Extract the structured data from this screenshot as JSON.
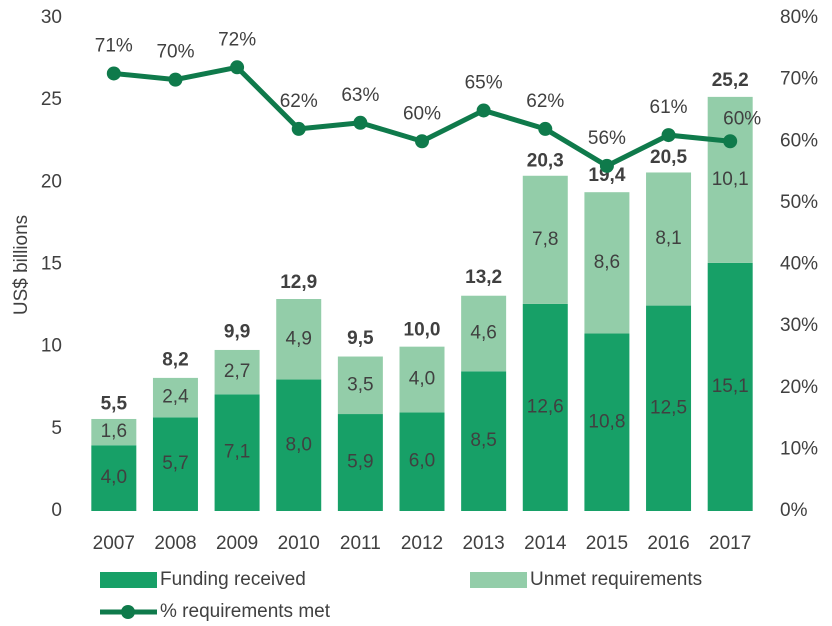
{
  "chart_data": {
    "type": "bar_line",
    "categories": [
      "2007",
      "2008",
      "2009",
      "2010",
      "2011",
      "2012",
      "2013",
      "2014",
      "2015",
      "2016",
      "2017"
    ],
    "series": [
      {
        "name": "Funding received",
        "type": "bar",
        "color": "#17a067",
        "values": [
          4.0,
          5.7,
          7.1,
          8.0,
          5.9,
          6.0,
          8.5,
          12.6,
          10.8,
          12.5,
          15.1
        ],
        "value_labels": [
          "4,0",
          "5,7",
          "7,1",
          "8,0",
          "5,9",
          "6,0",
          "8,5",
          "12,6",
          "10,8",
          "12,5",
          "15,1"
        ]
      },
      {
        "name": "Unmet requirements",
        "type": "bar",
        "color": "#93cda9",
        "values": [
          1.6,
          2.4,
          2.7,
          4.9,
          3.5,
          4.0,
          4.6,
          7.8,
          8.6,
          8.1,
          10.1
        ],
        "value_labels": [
          "1,6",
          "2,4",
          "2,7",
          "4,9",
          "3,5",
          "4,0",
          "4,6",
          "7,8",
          "8,6",
          "8,1",
          "10,1"
        ]
      },
      {
        "name": "% requirements met",
        "type": "line",
        "axis": "y2",
        "color": "#0f7a4b",
        "values": [
          71,
          70,
          72,
          62,
          63,
          60,
          65,
          62,
          56,
          61,
          60
        ],
        "value_labels": [
          "71%",
          "70%",
          "72%",
          "62%",
          "63%",
          "60%",
          "65%",
          "62%",
          "56%",
          "61%",
          "60%"
        ]
      }
    ],
    "totals": [
      5.5,
      8.2,
      9.9,
      12.9,
      9.5,
      10.0,
      13.2,
      20.3,
      19.4,
      20.5,
      25.2
    ],
    "total_labels": [
      "5,5",
      "8,2",
      "9,9",
      "12,9",
      "9,5",
      "10,0",
      "13,2",
      "20,3",
      "19,4",
      "20,5",
      "25,2"
    ],
    "y_label": "US$ billions",
    "ylim": [
      0,
      30
    ],
    "yticks": [
      0,
      5,
      10,
      15,
      20,
      25,
      30
    ],
    "y2lim": [
      0,
      80
    ],
    "y2ticks": [
      {
        "value": 0,
        "label": "0%"
      },
      {
        "value": 10,
        "label": "10%"
      },
      {
        "value": 20,
        "label": "20%"
      },
      {
        "value": 30,
        "label": "30%"
      },
      {
        "value": 40,
        "label": "40%"
      },
      {
        "value": 50,
        "label": "50%"
      },
      {
        "value": 60,
        "label": "60%"
      },
      {
        "value": 70,
        "label": "70%"
      },
      {
        "value": 80,
        "label": "80%"
      }
    ],
    "legend": "bottom"
  }
}
